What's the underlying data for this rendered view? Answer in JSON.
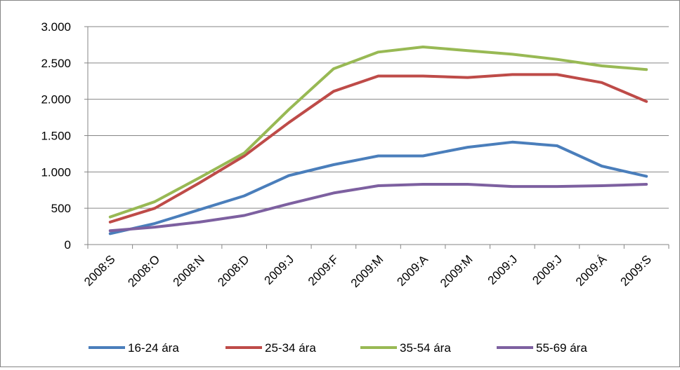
{
  "chart_data": {
    "type": "line",
    "title": "",
    "xlabel": "",
    "ylabel": "",
    "categories": [
      "2008:S",
      "2008:O",
      "2008:N",
      "2008:D",
      "2009:J",
      "2009:F",
      "2009:M",
      "2009:A",
      "2009:M",
      "2009:J",
      "2009:J",
      "2009:Á",
      "2009:S"
    ],
    "ylim": [
      0,
      3000
    ],
    "yticks": [
      0,
      500,
      1000,
      1500,
      2000,
      2500,
      3000
    ],
    "ytick_labels": [
      "0",
      "500",
      "1.000",
      "1.500",
      "2.000",
      "2.500",
      "3.000"
    ],
    "grid": true,
    "legend_position": "bottom",
    "series": [
      {
        "name": "16-24 ára",
        "color": "#4a7ebb",
        "values": [
          150,
          290,
          480,
          670,
          950,
          1100,
          1220,
          1220,
          1340,
          1410,
          1360,
          1080,
          940
        ]
      },
      {
        "name": "25-34 ára",
        "color": "#be4b48",
        "values": [
          310,
          500,
          850,
          1220,
          1680,
          2110,
          2320,
          2320,
          2300,
          2340,
          2340,
          2230,
          1970
        ]
      },
      {
        "name": "35-54 ára",
        "color": "#98b954",
        "values": [
          380,
          590,
          920,
          1260,
          1860,
          2420,
          2650,
          2720,
          2670,
          2620,
          2550,
          2460,
          2410
        ]
      },
      {
        "name": "55-69 ára",
        "color": "#7d60a0",
        "values": [
          190,
          240,
          310,
          400,
          560,
          710,
          810,
          830,
          830,
          800,
          800,
          810,
          830
        ]
      }
    ]
  }
}
